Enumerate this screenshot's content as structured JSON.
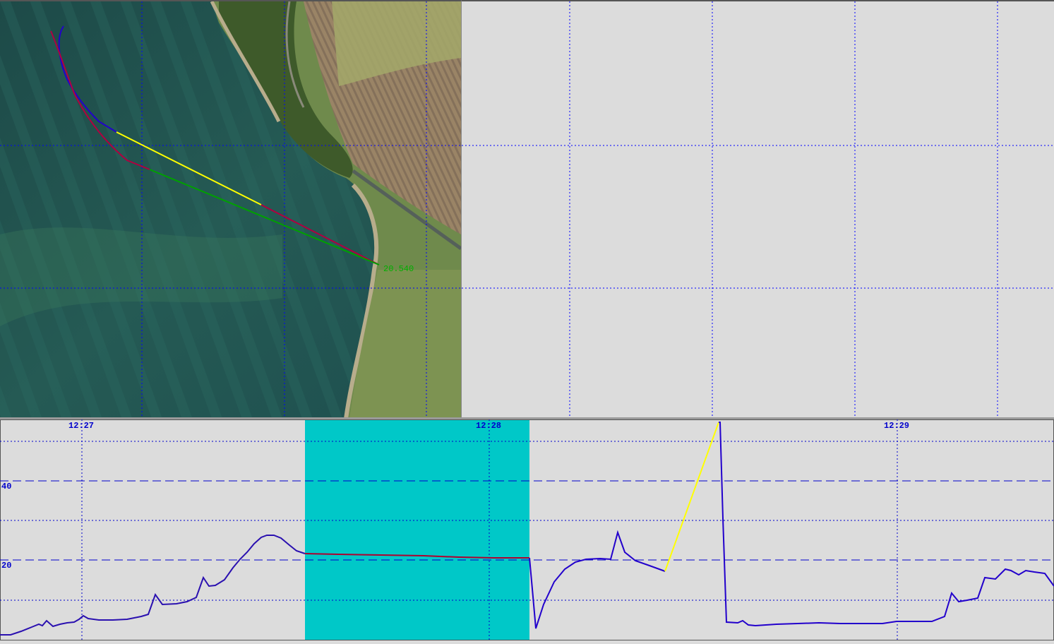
{
  "map": {
    "distance_label": "20.540"
  },
  "chart": {
    "x_tick_labels": [
      "12:27",
      "12:28",
      "12:29"
    ],
    "y_tick_labels": [
      "40",
      "20"
    ]
  },
  "colors": {
    "background": "#dcdcdc",
    "grid": "#0000cc",
    "selection": "#00c8c8",
    "track_red": "#cc0033",
    "track_blue": "#2200cc",
    "track_yellow": "#ffff00",
    "track_green": "#00a000",
    "track_purple": "#800080"
  },
  "chart_data": {
    "type": "line",
    "x_unit": "time",
    "y_ticks": [
      20,
      40
    ],
    "x_ticks": [
      "12:27",
      "12:28",
      "12:29"
    ]
  }
}
